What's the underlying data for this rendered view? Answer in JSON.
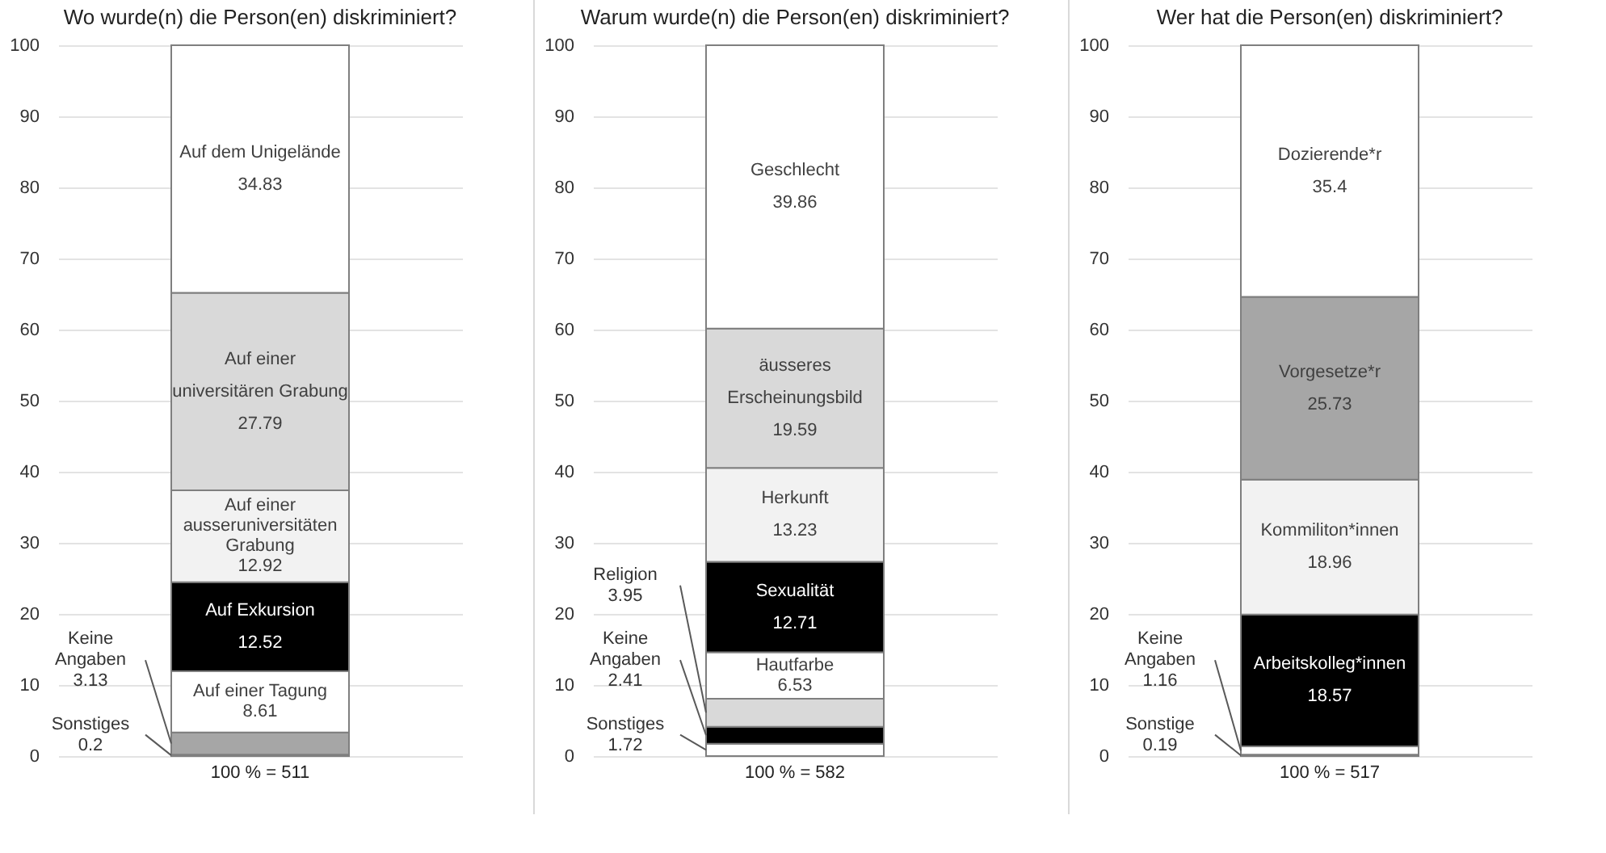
{
  "chart_data": [
    {
      "type": "bar",
      "title": "Wo wurde(n) die Person(en) diskriminiert?",
      "categories": [
        "100 % = 511"
      ],
      "stacked": true,
      "grid": "y",
      "ylim": [
        0,
        100
      ],
      "yticks": [
        0,
        10,
        20,
        30,
        40,
        50,
        60,
        70,
        80,
        90,
        100
      ],
      "series": [
        {
          "name": "Sonstiges",
          "color": "#8c7b3c",
          "values": [
            0.2
          ],
          "value_labels": [
            null
          ]
        },
        {
          "name": "Keine Angaben",
          "color": "#a6a6a6",
          "values": [
            3.13
          ],
          "value_labels": [
            null
          ]
        },
        {
          "name": "Auf einer Tagung",
          "color": "#ffffff",
          "values": [
            8.61
          ],
          "value_labels": [
            "8.61"
          ]
        },
        {
          "name": "Auf Exkursion",
          "color": "#000000",
          "values": [
            12.52
          ],
          "value_labels": [
            "12.52"
          ]
        },
        {
          "name": "Auf einer ausseruniversitäten Grabung",
          "color": "#f2f2f2",
          "values": [
            12.92
          ],
          "value_labels": [
            "12.92"
          ]
        },
        {
          "name": "Auf einer universitären Grabung",
          "color": "#d9d9d9",
          "values": [
            27.79
          ],
          "value_labels": [
            "27.79"
          ]
        },
        {
          "name": "Auf dem Unigelände",
          "color": "#ffffff",
          "values": [
            34.83
          ],
          "value_labels": [
            "34.83"
          ]
        }
      ],
      "annotations": [
        "0.2",
        "3.13"
      ]
    },
    {
      "type": "bar",
      "title": "Warum wurde(n) die Person(en) diskriminiert?",
      "categories": [
        "100 % = 582"
      ],
      "stacked": true,
      "grid": "y",
      "ylim": [
        0,
        100
      ],
      "yticks": [
        0,
        10,
        20,
        30,
        40,
        50,
        60,
        70,
        80,
        90,
        100
      ],
      "series": [
        {
          "name": "Sonstiges",
          "color": "#ffffff",
          "values": [
            1.72
          ],
          "value_labels": [
            null
          ]
        },
        {
          "name": "Keine Angaben",
          "color": "#000000",
          "values": [
            2.41
          ],
          "value_labels": [
            null
          ]
        },
        {
          "name": "Religion",
          "color": "#d9d9d9",
          "values": [
            3.95
          ],
          "value_labels": [
            null
          ]
        },
        {
          "name": "Hautfarbe",
          "color": "#ffffff",
          "values": [
            6.53
          ],
          "value_labels": [
            "6.53"
          ]
        },
        {
          "name": "Sexualität",
          "color": "#000000",
          "values": [
            12.71
          ],
          "value_labels": [
            "12.71"
          ]
        },
        {
          "name": "Herkunft",
          "color": "#f2f2f2",
          "values": [
            13.23
          ],
          "value_labels": [
            "13.23"
          ]
        },
        {
          "name": "äusseres Erscheinungsbild",
          "color": "#d9d9d9",
          "values": [
            19.59
          ],
          "value_labels": [
            "19.59"
          ]
        },
        {
          "name": "Geschlecht",
          "color": "#ffffff",
          "values": [
            39.86
          ],
          "value_labels": [
            "39.86"
          ]
        }
      ],
      "annotations": [
        "1.72",
        "2.41",
        "3.95"
      ]
    },
    {
      "type": "bar",
      "title": "Wer hat die Person(en) diskriminiert?",
      "categories": [
        "100 % = 517"
      ],
      "stacked": true,
      "grid": "y",
      "ylim": [
        0,
        100
      ],
      "yticks": [
        0,
        10,
        20,
        30,
        40,
        50,
        60,
        70,
        80,
        90,
        100
      ],
      "series": [
        {
          "name": "Sonstige",
          "color": "#4472c4",
          "values": [
            0.19
          ],
          "value_labels": [
            null
          ]
        },
        {
          "name": "Keine Angaben",
          "color": "#ffffff",
          "values": [
            1.16
          ],
          "value_labels": [
            null
          ]
        },
        {
          "name": "Arbeitskolleg*innen",
          "color": "#000000",
          "values": [
            18.57
          ],
          "value_labels": [
            "18.57"
          ]
        },
        {
          "name": "Kommiliton*innen",
          "color": "#f2f2f2",
          "values": [
            18.96
          ],
          "value_labels": [
            "18.96"
          ]
        },
        {
          "name": "Vorgesetze*r",
          "color": "#a6a6a6",
          "values": [
            25.73
          ],
          "value_labels": [
            "25.73"
          ]
        },
        {
          "name": "Dozierende*r",
          "color": "#ffffff",
          "values": [
            35.4
          ],
          "value_labels": [
            "35.4"
          ]
        }
      ],
      "annotations": [
        "0.19",
        "1.16"
      ]
    }
  ]
}
